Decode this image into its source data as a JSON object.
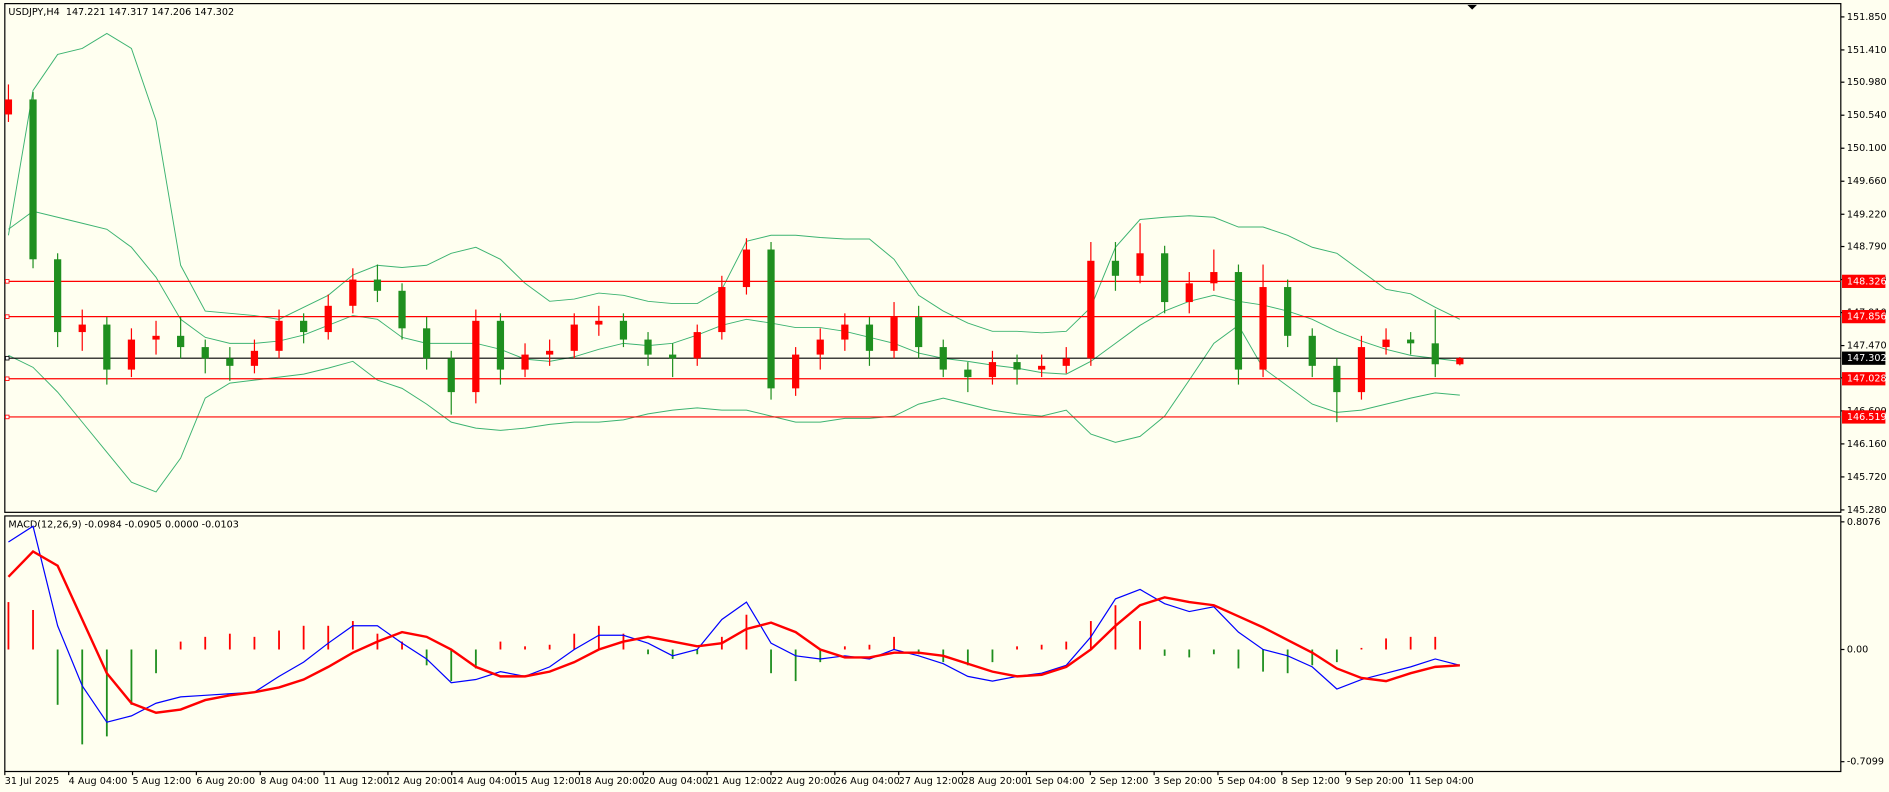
{
  "header": "USDJPY,H4  147.221 147.317 147.206 147.302",
  "x_axis_labels": [
    "31 Jul 2025",
    "4 Aug 04:00",
    "5 Aug 12:00",
    "6 Aug 20:00",
    "8 Aug 04:00",
    "11 Aug 12:00",
    "12 Aug 20:00",
    "14 Aug 04:00",
    "15 Aug 12:00",
    "18 Aug 20:00",
    "20 Aug 04:00",
    "21 Aug 12:00",
    "22 Aug 20:00",
    "26 Aug 04:00",
    "27 Aug 12:00",
    "28 Aug 20:00",
    "1 Sep 04:00",
    "2 Sep 12:00",
    "3 Sep 20:00",
    "5 Sep 04:00",
    "8 Sep 12:00",
    "9 Sep 20:00",
    "11 Sep 04:00"
  ],
  "chart_data": [
    {
      "type": "candlestick",
      "up_color": "#ff0000",
      "down_color": "#1f8f1f",
      "open": [
        150.55,
        150.75,
        148.62,
        147.65,
        147.75,
        147.15,
        147.55,
        147.6,
        147.45,
        147.3,
        147.2,
        147.4,
        147.8,
        147.65,
        148.0,
        148.35,
        148.2,
        147.7,
        147.3,
        146.85,
        147.8,
        147.15,
        147.35,
        147.4,
        147.75,
        147.8,
        147.55,
        147.35,
        147.3,
        147.65,
        148.25,
        148.75,
        146.9,
        147.35,
        147.55,
        147.75,
        147.4,
        147.85,
        147.45,
        147.15,
        147.05,
        147.25,
        147.15,
        147.2,
        147.3,
        148.6,
        148.4,
        148.7,
        148.05,
        148.3,
        148.45,
        147.15,
        148.25,
        147.6,
        147.2,
        146.85,
        147.45,
        147.55,
        147.5,
        147.221
      ],
      "high": [
        150.95,
        150.85,
        148.7,
        147.95,
        147.85,
        147.7,
        147.8,
        147.85,
        147.55,
        147.45,
        147.55,
        147.95,
        147.9,
        148.15,
        148.5,
        148.55,
        148.3,
        147.85,
        147.4,
        147.95,
        147.9,
        147.5,
        147.55,
        147.9,
        148.0,
        147.9,
        147.65,
        147.5,
        147.75,
        148.4,
        148.9,
        148.85,
        147.45,
        147.7,
        147.9,
        147.85,
        148.05,
        148.0,
        147.55,
        147.25,
        147.4,
        147.35,
        147.35,
        147.45,
        148.85,
        148.85,
        149.1,
        148.8,
        148.45,
        148.75,
        148.55,
        148.55,
        148.35,
        147.7,
        147.3,
        147.6,
        147.7,
        147.65,
        147.95,
        147.317
      ],
      "low": [
        150.45,
        148.5,
        147.45,
        147.4,
        146.95,
        147.05,
        147.35,
        147.3,
        147.1,
        147.0,
        147.1,
        147.3,
        147.5,
        147.55,
        147.9,
        148.05,
        147.55,
        147.15,
        146.55,
        146.7,
        146.95,
        147.05,
        147.2,
        147.3,
        147.6,
        147.45,
        147.2,
        147.05,
        147.2,
        147.55,
        148.15,
        146.75,
        146.8,
        147.15,
        147.4,
        147.2,
        147.3,
        147.3,
        147.05,
        146.85,
        146.95,
        146.95,
        147.05,
        147.1,
        147.2,
        148.2,
        148.3,
        147.9,
        147.9,
        148.2,
        146.95,
        147.05,
        147.45,
        147.05,
        146.45,
        146.75,
        147.35,
        147.35,
        147.05,
        147.206
      ],
      "close": [
        150.75,
        148.62,
        147.65,
        147.75,
        147.15,
        147.55,
        147.6,
        147.45,
        147.3,
        147.2,
        147.4,
        147.8,
        147.65,
        148.0,
        148.35,
        148.2,
        147.7,
        147.3,
        146.85,
        147.8,
        147.15,
        147.35,
        147.4,
        147.75,
        147.8,
        147.55,
        147.35,
        147.3,
        147.65,
        148.25,
        148.75,
        146.9,
        147.35,
        147.55,
        147.75,
        147.4,
        147.85,
        147.45,
        147.15,
        147.05,
        147.25,
        147.15,
        147.2,
        147.3,
        148.6,
        148.4,
        148.7,
        148.05,
        148.3,
        148.45,
        147.15,
        148.25,
        147.6,
        147.2,
        146.85,
        147.45,
        147.55,
        147.5,
        147.221,
        147.302
      ],
      "series": [
        {
          "color": "#3cb371",
          "values": [
            148.94,
            150.87,
            151.35,
            151.43,
            151.63,
            151.43,
            150.47,
            148.54,
            147.93,
            147.9,
            147.87,
            147.82,
            147.98,
            148.14,
            148.41,
            148.54,
            148.51,
            148.54,
            148.7,
            148.78,
            148.62,
            148.3,
            148.06,
            148.09,
            148.17,
            148.14,
            148.06,
            148.03,
            148.03,
            148.22,
            148.86,
            148.94,
            148.94,
            148.91,
            148.89,
            148.89,
            148.62,
            148.14,
            147.93,
            147.77,
            147.66,
            147.66,
            147.64,
            147.66,
            147.98,
            148.78,
            149.15,
            149.18,
            149.2,
            149.18,
            149.05,
            149.05,
            148.94,
            148.78,
            148.7,
            148.46,
            148.22,
            148.16,
            147.98,
            147.82
          ]
        },
        {
          "color": "#3cb371",
          "values": [
            149.02,
            149.26,
            149.18,
            149.1,
            149.02,
            148.78,
            148.38,
            147.82,
            147.58,
            147.5,
            147.5,
            147.53,
            147.61,
            147.74,
            147.87,
            147.82,
            147.58,
            147.5,
            147.5,
            147.5,
            147.42,
            147.29,
            147.26,
            147.32,
            147.42,
            147.5,
            147.47,
            147.5,
            147.61,
            147.74,
            147.82,
            147.77,
            147.71,
            147.71,
            147.66,
            147.58,
            147.5,
            147.37,
            147.3,
            147.26,
            147.21,
            147.17,
            147.11,
            147.09,
            147.26,
            147.5,
            147.74,
            147.93,
            148.06,
            148.14,
            148.06,
            148.01,
            147.93,
            147.82,
            147.66,
            147.53,
            147.42,
            147.34,
            147.3,
            147.26
          ]
        },
        {
          "color": "#3cb371",
          "values": [
            147.34,
            147.18,
            146.85,
            146.45,
            146.05,
            145.65,
            145.52,
            145.97,
            146.77,
            146.97,
            147.01,
            147.05,
            147.09,
            147.17,
            147.26,
            147.01,
            146.9,
            146.69,
            146.45,
            146.37,
            146.34,
            146.37,
            146.42,
            146.45,
            146.45,
            146.48,
            146.56,
            146.61,
            146.64,
            146.61,
            146.61,
            146.53,
            146.45,
            146.45,
            146.5,
            146.5,
            146.53,
            146.69,
            146.77,
            146.69,
            146.61,
            146.56,
            146.53,
            146.61,
            146.29,
            146.18,
            146.26,
            146.53,
            147.01,
            147.5,
            147.74,
            147.17,
            146.93,
            146.69,
            146.58,
            146.61,
            146.69,
            146.77,
            146.84,
            146.81
          ]
        }
      ],
      "hlines": [
        {
          "value": 148.326,
          "color": "#ff0000"
        },
        {
          "value": 147.856,
          "color": "#ff0000"
        },
        {
          "value": 147.302,
          "color": "#000000"
        },
        {
          "value": 147.028,
          "color": "#ff0000"
        },
        {
          "value": 146.519,
          "color": "#ff0000"
        }
      ],
      "ylim": [
        145.248,
        152.027
      ],
      "yticks": [
        {
          "value": 145.28,
          "label": "145.280"
        },
        {
          "value": 145.72,
          "label": "145.720"
        },
        {
          "value": 146.16,
          "label": "146.160"
        },
        {
          "value": 146.6,
          "label": "146.600"
        },
        {
          "value": 147.04,
          "label": "147.040"
        },
        {
          "value": 147.47,
          "label": "147.470"
        },
        {
          "value": 147.91,
          "label": "147.910"
        },
        {
          "value": 148.35,
          "label": "148.350"
        },
        {
          "value": 148.79,
          "label": "148.790"
        },
        {
          "value": 149.22,
          "label": "149.220"
        },
        {
          "value": 149.66,
          "label": "149.660"
        },
        {
          "value": 150.1,
          "label": "150.100"
        },
        {
          "value": 150.54,
          "label": "150.540"
        },
        {
          "value": 150.98,
          "label": "150.980"
        },
        {
          "value": 151.41,
          "label": "151.410"
        },
        {
          "value": 151.85,
          "label": "151.850"
        }
      ]
    },
    {
      "type": "macd",
      "title": "MACD(12,26,9) -0.0984 -0.0905 0.0000 -0.0103",
      "hist_up_color": "#ff0000",
      "hist_down_color": "#1f8f1f",
      "histogram": [
        0.3,
        0.25,
        -0.35,
        -0.6,
        -0.55,
        -0.35,
        -0.15,
        0.05,
        0.08,
        0.1,
        0.08,
        0.12,
        0.15,
        0.15,
        0.18,
        0.1,
        0.05,
        -0.1,
        -0.2,
        -0.12,
        0.05,
        0.02,
        0.03,
        0.1,
        0.15,
        0.1,
        -0.03,
        -0.06,
        -0.03,
        0.08,
        0.22,
        -0.15,
        -0.2,
        -0.08,
        0.02,
        0.03,
        0.08,
        -0.03,
        -0.08,
        -0.1,
        -0.08,
        0.02,
        0.03,
        0.05,
        0.18,
        0.28,
        0.18,
        -0.04,
        -0.05,
        -0.03,
        -0.12,
        -0.14,
        -0.15,
        -0.1,
        -0.08,
        0.01,
        0.07,
        0.08,
        0.08,
        0.0
      ],
      "series": [
        {
          "color": "#0000ff",
          "width": 1,
          "values": [
            0.68,
            0.78,
            0.15,
            -0.23,
            -0.46,
            -0.42,
            -0.34,
            -0.3,
            -0.29,
            -0.28,
            -0.27,
            -0.17,
            -0.08,
            0.04,
            0.15,
            0.15,
            0.04,
            -0.06,
            -0.21,
            -0.19,
            -0.14,
            -0.17,
            -0.11,
            0.0,
            0.09,
            0.09,
            0.04,
            -0.04,
            0.0,
            0.19,
            0.3,
            0.04,
            -0.04,
            -0.06,
            -0.04,
            -0.06,
            0.0,
            -0.04,
            -0.09,
            -0.17,
            -0.2,
            -0.17,
            -0.15,
            -0.1,
            0.08,
            0.32,
            0.38,
            0.29,
            0.24,
            0.27,
            0.11,
            0.0,
            -0.04,
            -0.11,
            -0.25,
            -0.19,
            -0.15,
            -0.11,
            -0.06,
            -0.1
          ]
        },
        {
          "color": "#ff0000",
          "width": 2,
          "values": [
            0.46,
            0.62,
            0.53,
            0.19,
            -0.15,
            -0.34,
            -0.4,
            -0.38,
            -0.32,
            -0.29,
            -0.27,
            -0.24,
            -0.19,
            -0.11,
            -0.02,
            0.05,
            0.11,
            0.08,
            0.0,
            -0.11,
            -0.17,
            -0.17,
            -0.14,
            -0.08,
            0.0,
            0.05,
            0.08,
            0.05,
            0.02,
            0.04,
            0.13,
            0.17,
            0.11,
            0.0,
            -0.05,
            -0.05,
            -0.02,
            -0.02,
            -0.04,
            -0.09,
            -0.14,
            -0.17,
            -0.16,
            -0.11,
            0.0,
            0.15,
            0.28,
            0.33,
            0.3,
            0.28,
            0.21,
            0.14,
            0.06,
            -0.02,
            -0.12,
            -0.18,
            -0.2,
            -0.15,
            -0.11,
            -0.1
          ]
        }
      ],
      "ylim": [
        -0.772,
        0.845
      ],
      "yticks": [
        0.8076,
        {
          "value": 0,
          "label": "0.00"
        },
        -0.7099
      ]
    }
  ]
}
